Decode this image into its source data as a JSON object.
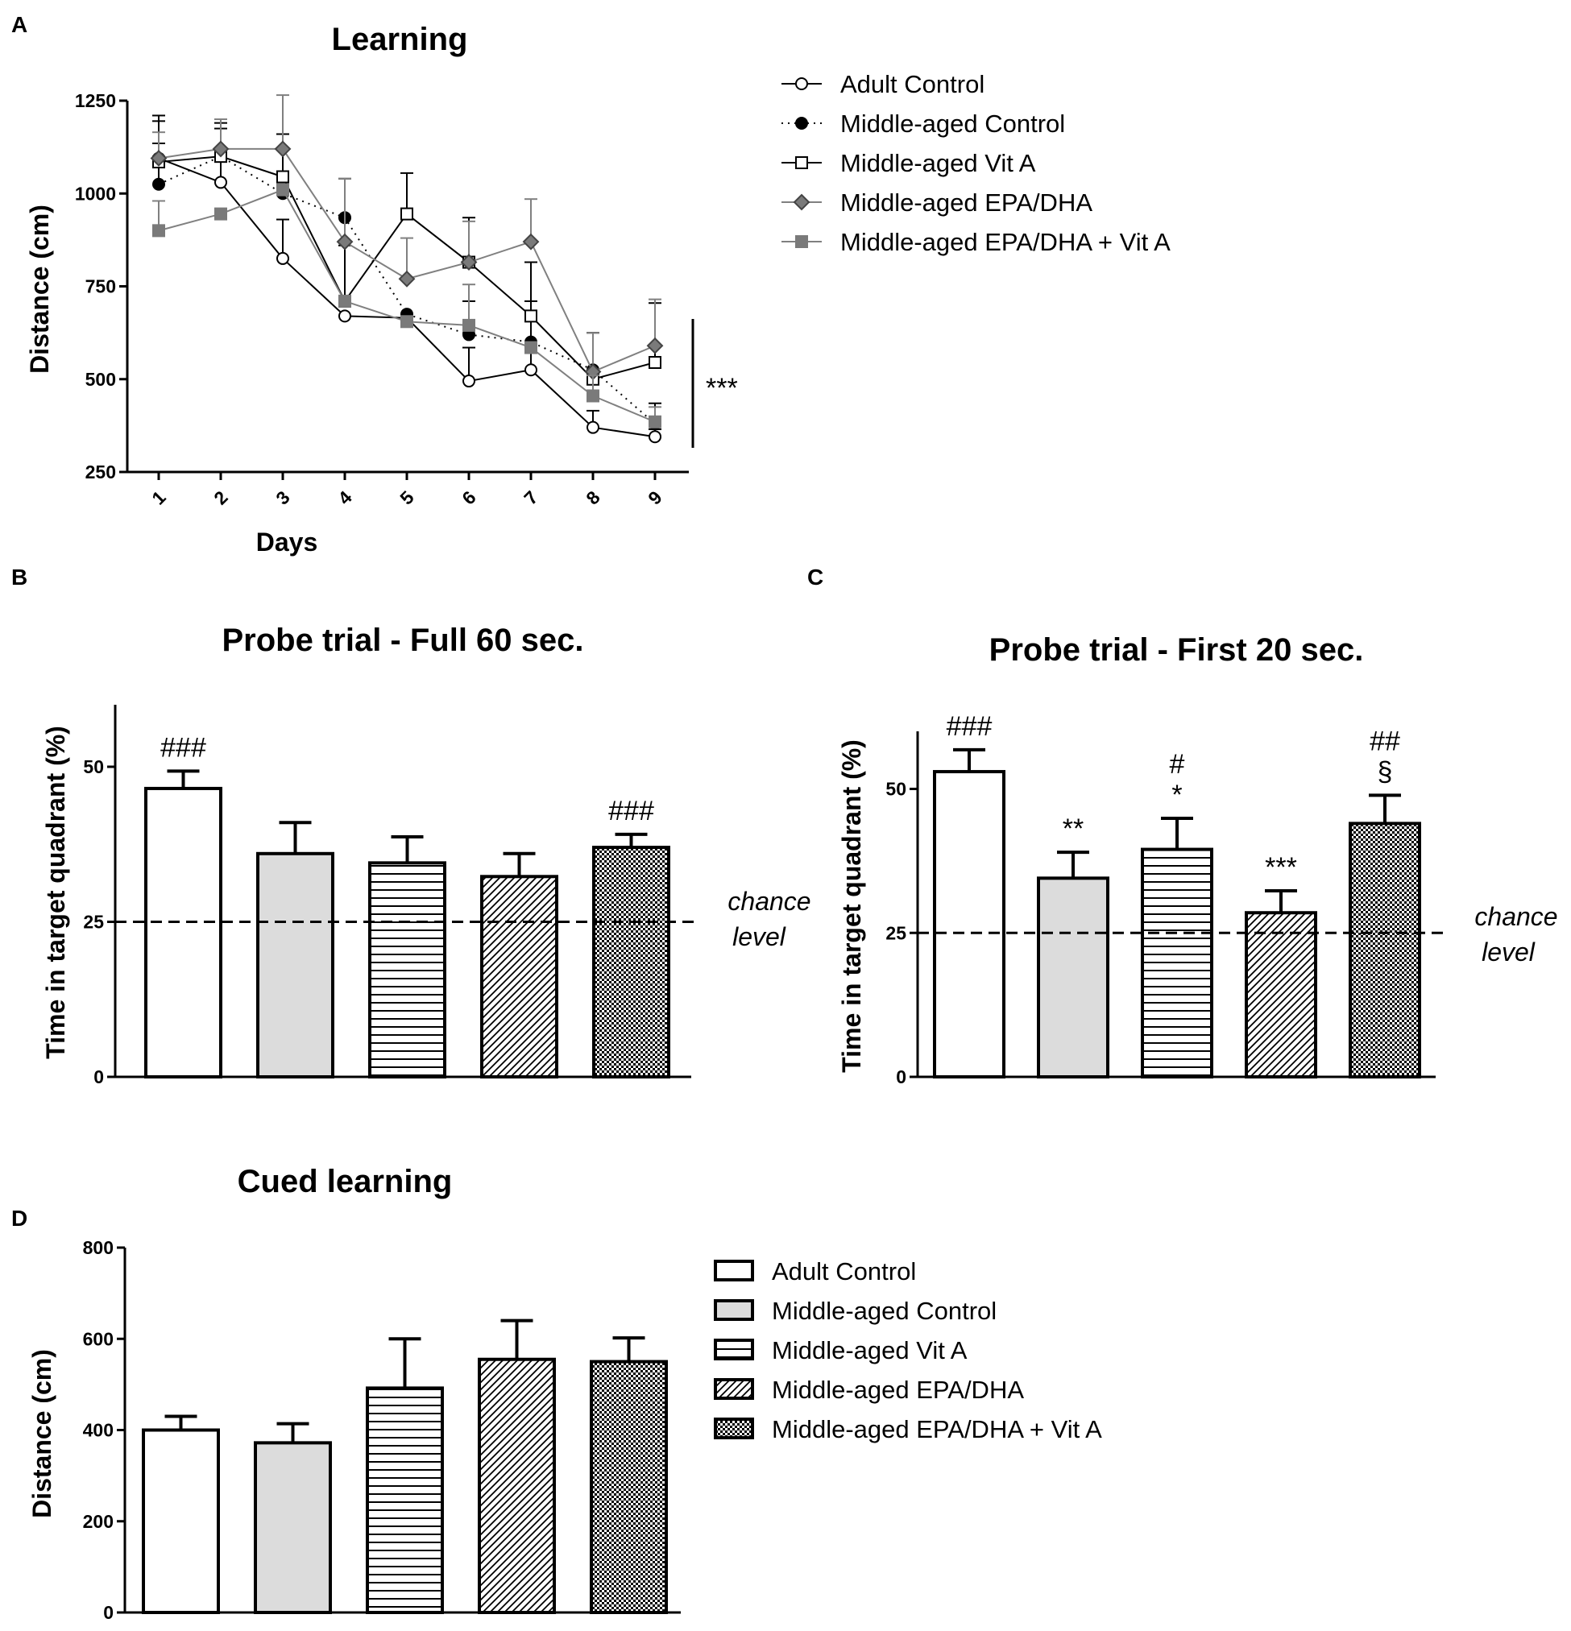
{
  "panels": {
    "a": {
      "label": "A"
    },
    "b": {
      "label": "B"
    },
    "c": {
      "label": "C"
    },
    "d": {
      "label": "D"
    }
  },
  "colors": {
    "adult": "#ffffff",
    "mid_control": "#dcdcdc",
    "black": "#000000",
    "grey_line": "#808080",
    "grey_marker": "#7a7a7a"
  },
  "chart_data": [
    {
      "id": "A",
      "type": "line",
      "title": "Learning",
      "xlabel": "Days",
      "ylabel": "Distance (cm)",
      "x": [
        "1",
        "2",
        "3",
        "4",
        "5",
        "6",
        "7",
        "8",
        "9"
      ],
      "ylim": [
        250,
        1250
      ],
      "yticks": [
        "250",
        "500",
        "750",
        "1000",
        "1250"
      ],
      "significance": "***",
      "series": [
        {
          "name": "Adult Control",
          "marker": "open-circle",
          "values": [
            1095,
            1030,
            825,
            670,
            665,
            495,
            525,
            370,
            345
          ],
          "errors": [
            100,
            60,
            105,
            0,
            0,
            90,
            45,
            45,
            20
          ]
        },
        {
          "name": "Middle-aged Control",
          "marker": "filled-circle",
          "values": [
            1025,
            1100,
            1000,
            935,
            675,
            620,
            600,
            525,
            380
          ],
          "errors": [
            110,
            75,
            0,
            105,
            0,
            90,
            110,
            100,
            55
          ]
        },
        {
          "name": "Middle-aged Vit A",
          "marker": "open-square",
          "values": [
            1085,
            1100,
            1045,
            710,
            945,
            815,
            670,
            500,
            545
          ],
          "errors": [
            125,
            90,
            115,
            150,
            110,
            120,
            145,
            125,
            160
          ]
        },
        {
          "name": "Middle-aged EPA/DHA",
          "marker": "diamond",
          "values": [
            1095,
            1120,
            1120,
            870,
            770,
            815,
            870,
            520,
            590
          ],
          "errors": [
            70,
            80,
            145,
            170,
            110,
            110,
            115,
            105,
            125
          ]
        },
        {
          "name": "Middle-aged EPA/DHA + Vit A",
          "marker": "filled-square",
          "values": [
            900,
            945,
            1010,
            710,
            655,
            645,
            585,
            455,
            385
          ],
          "errors": [
            80,
            0,
            0,
            0,
            0,
            110,
            0,
            55,
            40
          ]
        }
      ]
    },
    {
      "id": "B",
      "type": "bar",
      "title": "Probe trial - Full 60 sec.",
      "ylabel": "Time in target quadrant (%)",
      "categories": [
        "Adult Control",
        "Middle-aged Control",
        "Middle-aged Vit A",
        "Middle-aged EPA/DHA",
        "Middle-aged EPA/DHA + Vit A"
      ],
      "values": [
        46.5,
        36,
        34.5,
        32.3,
        37
      ],
      "errors": [
        2.8,
        5,
        4.2,
        3.7,
        2.1
      ],
      "ylim": [
        0,
        60
      ],
      "yticks": [
        "0",
        "25",
        "50"
      ],
      "chance_level": 25,
      "chance_label": [
        "chance",
        "level"
      ],
      "annotations": [
        "###",
        "",
        "",
        "",
        "###"
      ]
    },
    {
      "id": "C",
      "type": "bar",
      "title": "Probe trial - First 20 sec.",
      "ylabel": "Time in target quadrant (%)",
      "categories": [
        "Adult Control",
        "Middle-aged Control",
        "Middle-aged Vit A",
        "Middle-aged EPA/DHA",
        "Middle-aged EPA/DHA + Vit A"
      ],
      "values": [
        53,
        34.5,
        39.5,
        28.5,
        44
      ],
      "errors": [
        3.8,
        4.5,
        5.4,
        3.8,
        4.9
      ],
      "ylim": [
        0,
        60
      ],
      "yticks": [
        "0",
        "25",
        "50"
      ],
      "chance_level": 25,
      "chance_label": [
        "chance",
        "level"
      ],
      "annotations": [
        [
          "###"
        ],
        [
          "**"
        ],
        [
          "#",
          "*"
        ],
        [
          "***"
        ],
        [
          "##",
          "§"
        ]
      ]
    },
    {
      "id": "D",
      "type": "bar",
      "title": "Cued learning",
      "ylabel": "Distance (cm)",
      "categories": [
        "Adult Control",
        "Middle-aged Control",
        "Middle-aged Vit A",
        "Middle-aged EPA/DHA",
        "Middle-aged EPA/DHA + Vit A"
      ],
      "values": [
        400,
        372,
        492,
        555,
        550
      ],
      "errors": [
        30,
        42,
        108,
        85,
        52
      ],
      "ylim": [
        0,
        800
      ],
      "yticks": [
        "0",
        "200",
        "400",
        "600",
        "800"
      ]
    }
  ]
}
